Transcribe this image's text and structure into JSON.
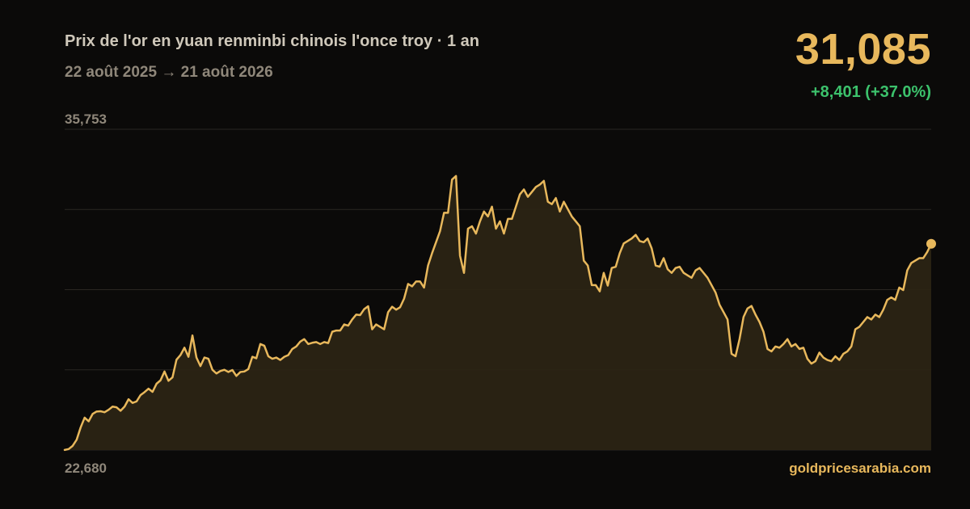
{
  "header": {
    "title": "Prix de l'or en yuan renminbi chinois l'once troy · 1 an",
    "date_range": "22 août 2025 → 21 août 2026",
    "current_price": "31,085",
    "change": "+8,401 (+37.0%)",
    "source": "goldpricesarabia.com"
  },
  "colors": {
    "background": "#0b0a09",
    "line": "#e8b85c",
    "fill": "#2b2414",
    "grid": "#2a2722",
    "positive": "#3cc26c"
  },
  "chart_data": {
    "type": "area",
    "title": "Prix de l'or en yuan renminbi chinois l'once troy · 1 an",
    "x_start": "22 août 2025",
    "x_end": "21 août 2026",
    "ylim": [
      22680,
      35753
    ],
    "ymax_label": "35,753",
    "ymin_label": "22,680",
    "grid": true,
    "last_value": 31085,
    "values": [
      22684,
      22720,
      22850,
      23100,
      23600,
      24000,
      23850,
      24150,
      24250,
      24260,
      24220,
      24320,
      24450,
      24420,
      24280,
      24450,
      24750,
      24600,
      24660,
      24920,
      25040,
      25180,
      25050,
      25380,
      25520,
      25880,
      25500,
      25640,
      26360,
      26550,
      26850,
      26480,
      27350,
      26450,
      26100,
      26450,
      26400,
      25950,
      25800,
      25900,
      25950,
      25860,
      25940,
      25700,
      25860,
      25880,
      25980,
      26480,
      26420,
      27000,
      26930,
      26500,
      26400,
      26450,
      26350,
      26480,
      26550,
      26800,
      26900,
      27100,
      27200,
      27000,
      27050,
      27080,
      27000,
      27080,
      27040,
      27500,
      27550,
      27550,
      27800,
      27750,
      28000,
      28200,
      28180,
      28420,
      28540,
      27600,
      27800,
      27700,
      27600,
      28300,
      28520,
      28400,
      28500,
      28850,
      29450,
      29350,
      29550,
      29550,
      29300,
      30200,
      30700,
      31150,
      31600,
      32350,
      32350,
      33700,
      33850,
      30600,
      29900,
      31700,
      31800,
      31500,
      32000,
      32400,
      32200,
      32600,
      31700,
      32000,
      31500,
      32100,
      32100,
      32600,
      33100,
      33300,
      33000,
      33200,
      33400,
      33500,
      33650,
      32800,
      32700,
      32950,
      32400,
      32800,
      32500,
      32200,
      32000,
      31800,
      30400,
      30200,
      29400,
      29400,
      29150,
      29900,
      29380,
      30100,
      30150,
      30700,
      31100,
      31200,
      31300,
      31450,
      31200,
      31150,
      31300,
      30900,
      30200,
      30150,
      30500,
      30050,
      29900,
      30100,
      30150,
      29900,
      29800,
      29700,
      30000,
      30100,
      29900,
      29700,
      29400,
      29100,
      28600,
      28300,
      28000,
      26600,
      26500,
      27200,
      28100,
      28450,
      28550,
      28200,
      27900,
      27500,
      26800,
      26700,
      26900,
      26850,
      27000,
      27200,
      26900,
      27000,
      26800,
      26850,
      26400,
      26200,
      26300,
      26650,
      26450,
      26350,
      26300,
      26500,
      26350,
      26600,
      26700,
      26900,
      27600,
      27700,
      27900,
      28100,
      28000,
      28200,
      28100,
      28400,
      28800,
      28900,
      28800,
      29300,
      29200,
      30000,
      30300,
      30400,
      30500,
      30500,
      30750,
      31085
    ]
  }
}
